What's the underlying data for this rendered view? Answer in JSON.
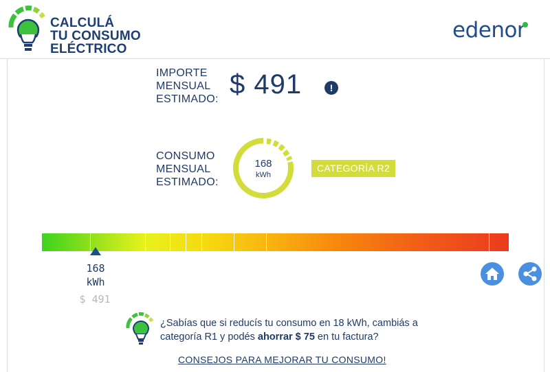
{
  "header": {
    "title_line1": "CALCULÁ",
    "title_line2": "TU CONSUMO",
    "title_line3": "ELÉCTRICO",
    "brand": "edenor"
  },
  "importe": {
    "label_line1": "IMPORTE",
    "label_line2": "MENSUAL",
    "label_line3": "ESTIMADO:",
    "amount": "$ 491"
  },
  "consumo": {
    "label_line1": "CONSUMO",
    "label_line2": "MENSUAL",
    "label_line3": "ESTIMADO:",
    "value": "168",
    "unit": "kWh",
    "category": "CATEGORÍA R2"
  },
  "scale": {
    "marker_value": "168",
    "marker_unit": "kWh",
    "marker_amount": "$ 491"
  },
  "tip": {
    "text_part1": "¿Sabías que si reducís tu consumo en 18 kWh, cambiás a categoría R1 y podés ",
    "text_bold": "ahorrar $ 75",
    "text_part2": " en tu factura?",
    "link": "CONSEJOS PARA MEJORAR TU CONSUMO!"
  },
  "colors": {
    "primary_text": "#1f3a66",
    "category_badge": "#d2dc3a",
    "action_buttons": "#4a8fe0",
    "brand_green": "#2dbb4a"
  },
  "icons": [
    "lightbulb-logo-icon",
    "info-icon",
    "home-icon",
    "share-icon",
    "lightbulb-tip-icon"
  ]
}
